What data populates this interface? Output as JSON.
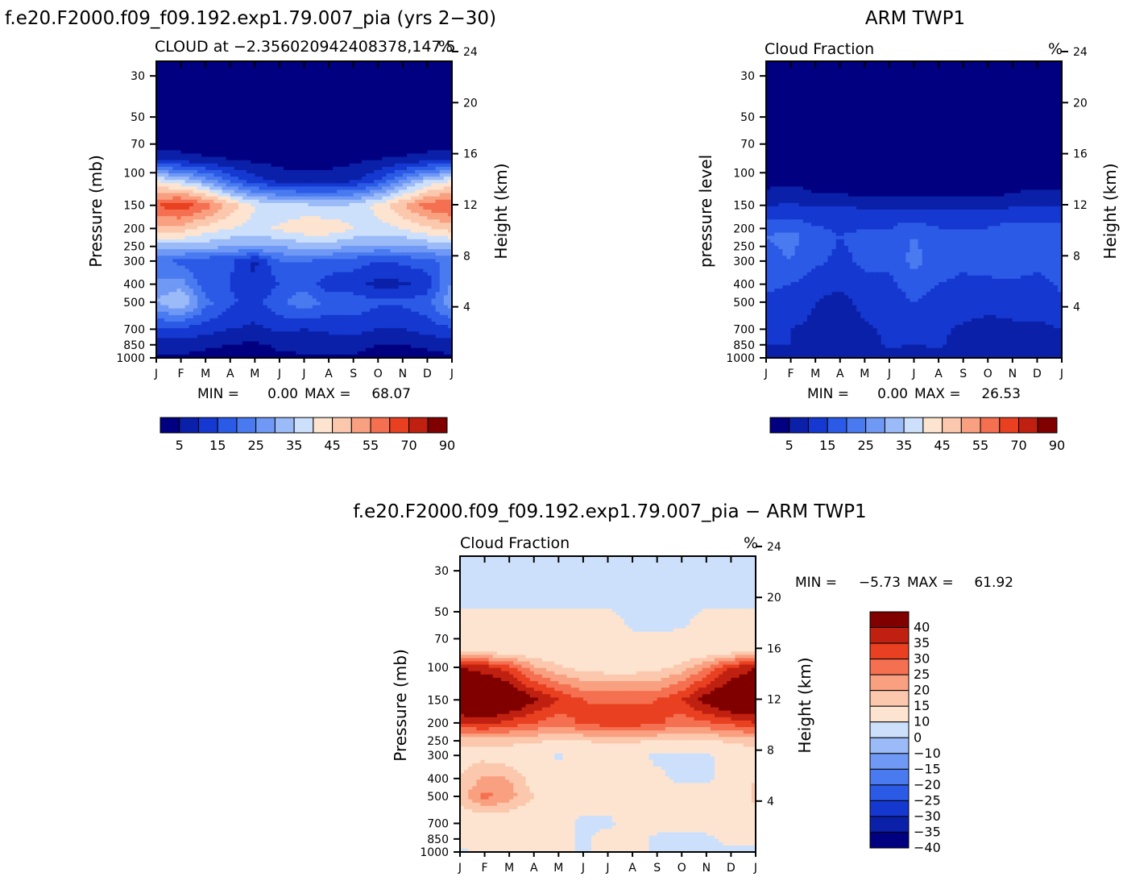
{
  "months": [
    "J",
    "F",
    "M",
    "A",
    "M",
    "J",
    "J",
    "A",
    "S",
    "O",
    "N",
    "D",
    "J"
  ],
  "pressure_ticks": [
    "30",
    "50",
    "70",
    "100",
    "150",
    "200",
    "250",
    "300",
    "400",
    "500",
    "700",
    "850",
    "1000"
  ],
  "height_ticks": [
    "24",
    "20",
    "16",
    "12",
    "8",
    "4"
  ],
  "chart_data": [
    {
      "type": "heatmap",
      "run_title": "f.e20.F2000.f09_f09.192.exp1.79.007_pia (yrs 2−30)",
      "title": "CLOUD at −2.356020942408378,147.5",
      "units": "%",
      "ylabel": "Pressure (mb)",
      "y2label": "Height (km)",
      "min_label": "MIN =",
      "min_value": "0.00",
      "max_label": "MAX =",
      "max_value": "68.07",
      "x": [
        "J",
        "F",
        "M",
        "A",
        "M",
        "J",
        "J",
        "A",
        "S",
        "O",
        "N",
        "D",
        "J"
      ],
      "ylim_mb": [
        1000,
        25
      ],
      "colorbar": {
        "labels": [
          "5",
          "15",
          "25",
          "35",
          "45",
          "55",
          "70",
          "90"
        ],
        "levels": [
          5,
          10,
          15,
          20,
          25,
          30,
          35,
          40,
          45,
          50,
          55,
          60,
          70,
          80,
          90
        ],
        "colors": [
          "#000080",
          "#0a20a8",
          "#1538d0",
          "#2b5ae6",
          "#4a7af0",
          "#6f99f5",
          "#9bbaf8",
          "#cde0fb",
          "#fde4d0",
          "#fbc8ae",
          "#f9a080",
          "#f57050",
          "#e84020",
          "#c02010",
          "#800000"
        ]
      },
      "profiles": [
        {
          "p": 25,
          "v": [
            2,
            2,
            2,
            2,
            2,
            2,
            2,
            2,
            2,
            2,
            2,
            2,
            2
          ]
        },
        {
          "p": 70,
          "v": [
            2,
            2,
            2,
            2,
            2,
            2,
            2,
            2,
            2,
            2,
            2,
            2,
            2
          ]
        },
        {
          "p": 85,
          "v": [
            8,
            8,
            6,
            5,
            4,
            3,
            3,
            3,
            4,
            5,
            6,
            8,
            8
          ]
        },
        {
          "p": 110,
          "v": [
            40,
            35,
            28,
            18,
            12,
            8,
            7,
            7,
            9,
            15,
            25,
            35,
            40
          ]
        },
        {
          "p": 150,
          "v": [
            60,
            64,
            58,
            48,
            40,
            36,
            36,
            35,
            36,
            42,
            50,
            58,
            60
          ]
        },
        {
          "p": 200,
          "v": [
            48,
            48,
            43,
            40,
            38,
            41,
            44,
            44,
            40,
            38,
            40,
            44,
            48
          ]
        },
        {
          "p": 250,
          "v": [
            33,
            33,
            32,
            30,
            30,
            30,
            32,
            32,
            30,
            29,
            29,
            31,
            33
          ]
        },
        {
          "p": 300,
          "v": [
            22,
            18,
            16,
            16,
            9,
            20,
            20,
            19,
            17,
            15,
            16,
            18,
            22
          ]
        },
        {
          "p": 400,
          "v": [
            26,
            28,
            16,
            15,
            10,
            15,
            18,
            12,
            12,
            8,
            9,
            12,
            26
          ]
        },
        {
          "p": 500,
          "v": [
            30,
            36,
            22,
            16,
            13,
            19,
            24,
            18,
            18,
            16,
            16,
            18,
            30
          ]
        },
        {
          "p": 700,
          "v": [
            14,
            14,
            12,
            10,
            9,
            11,
            10,
            11,
            12,
            10,
            10,
            12,
            14
          ]
        },
        {
          "p": 850,
          "v": [
            8,
            8,
            6,
            5,
            4,
            6,
            7,
            7,
            7,
            5,
            5,
            6,
            8
          ]
        },
        {
          "p": 1000,
          "v": [
            4,
            4,
            3,
            3,
            3,
            4,
            4,
            4,
            4,
            3,
            3,
            3,
            4
          ]
        }
      ]
    },
    {
      "type": "heatmap",
      "run_title": "ARM TWP1",
      "title": "Cloud Fraction",
      "units": "%",
      "ylabel": "pressure level",
      "y2label": "Height (km)",
      "min_label": "MIN =",
      "min_value": "0.00",
      "max_label": "MAX =",
      "max_value": "26.53",
      "x": [
        "J",
        "F",
        "M",
        "A",
        "M",
        "J",
        "J",
        "A",
        "S",
        "O",
        "N",
        "D",
        "J"
      ],
      "ylim_mb": [
        1000,
        25
      ],
      "colorbar": {
        "labels": [
          "5",
          "15",
          "25",
          "35",
          "45",
          "55",
          "70",
          "90"
        ],
        "levels": [
          5,
          10,
          15,
          20,
          25,
          30,
          35,
          40,
          45,
          50,
          55,
          60,
          70,
          80,
          90
        ],
        "colors": [
          "#000080",
          "#0a20a8",
          "#1538d0",
          "#2b5ae6",
          "#4a7af0",
          "#6f99f5",
          "#9bbaf8",
          "#cde0fb",
          "#fde4d0",
          "#fbc8ae",
          "#f9a080",
          "#f57050",
          "#e84020",
          "#c02010",
          "#800000"
        ]
      },
      "profiles": [
        {
          "p": 25,
          "v": [
            1,
            1,
            1,
            1,
            1,
            1,
            1,
            1,
            1,
            1,
            1,
            1,
            1
          ]
        },
        {
          "p": 100,
          "v": [
            2,
            2,
            2,
            2,
            2,
            2,
            2,
            2,
            2,
            2,
            2,
            2,
            2
          ]
        },
        {
          "p": 130,
          "v": [
            6,
            7,
            5,
            5,
            4,
            4,
            4,
            4,
            4,
            4,
            5,
            6,
            6
          ]
        },
        {
          "p": 170,
          "v": [
            13,
            14,
            13,
            13,
            13,
            13,
            13,
            12,
            12,
            12,
            13,
            13,
            13
          ]
        },
        {
          "p": 220,
          "v": [
            20,
            22,
            17,
            15,
            16,
            16,
            20,
            17,
            16,
            17,
            20,
            18,
            20
          ]
        },
        {
          "p": 300,
          "v": [
            18,
            20,
            16,
            14,
            16,
            16,
            22,
            17,
            16,
            17,
            19,
            17,
            18
          ]
        },
        {
          "p": 400,
          "v": [
            16,
            15,
            12,
            11,
            14,
            14,
            17,
            15,
            14,
            14,
            14,
            13,
            16
          ]
        },
        {
          "p": 500,
          "v": [
            14,
            13,
            10,
            8,
            12,
            13,
            15,
            13,
            13,
            12,
            12,
            12,
            14
          ]
        },
        {
          "p": 700,
          "v": [
            10,
            10,
            9,
            7,
            9,
            11,
            11,
            11,
            9,
            8,
            9,
            9,
            10
          ]
        },
        {
          "p": 850,
          "v": [
            10,
            10,
            8,
            6,
            8,
            11,
            10,
            11,
            8,
            8,
            8,
            9,
            10
          ]
        },
        {
          "p": 1000,
          "v": [
            6,
            6,
            5,
            5,
            6,
            6,
            6,
            6,
            6,
            6,
            6,
            6,
            6
          ]
        }
      ]
    },
    {
      "type": "heatmap",
      "run_title": "f.e20.F2000.f09_f09.192.exp1.79.007_pia − ARM TWP1",
      "title": "Cloud Fraction",
      "units": "%",
      "ylabel": "Pressure (mb)",
      "y2label": "Height (km)",
      "min_label": "MIN =",
      "min_value": "−5.73",
      "max_label": "MAX =",
      "max_value": "61.92",
      "x": [
        "J",
        "F",
        "M",
        "A",
        "M",
        "J",
        "J",
        "A",
        "S",
        "O",
        "N",
        "D",
        "J"
      ],
      "ylim_mb": [
        1000,
        25
      ],
      "colorbar": {
        "labels": [
          "40",
          "35",
          "30",
          "25",
          "20",
          "15",
          "10",
          "0",
          "−10",
          "−15",
          "−20",
          "−25",
          "−30",
          "−35",
          "−40"
        ],
        "levels": [
          -40,
          -35,
          -30,
          -25,
          -20,
          -15,
          -10,
          0,
          10,
          15,
          20,
          25,
          30,
          35,
          40
        ],
        "colors": [
          "#000080",
          "#0a20a8",
          "#1538d0",
          "#2b5ae6",
          "#4a7af0",
          "#6f99f5",
          "#9bbaf8",
          "#cde0fb",
          "#fde4d0",
          "#fbc8ae",
          "#f9a080",
          "#f57050",
          "#e84020",
          "#c02010",
          "#800000"
        ]
      },
      "profiles": [
        {
          "p": 25,
          "v": [
            -2,
            -2,
            -2,
            -2,
            -2,
            -2,
            -2,
            -2,
            -2,
            -2,
            -2,
            -2,
            -2
          ]
        },
        {
          "p": 45,
          "v": [
            -2,
            -2,
            -2,
            -2,
            -2,
            -2,
            -2,
            -2,
            -2,
            -2,
            -2,
            -2,
            -2
          ]
        },
        {
          "p": 55,
          "v": [
            3,
            3,
            3,
            3,
            3,
            3,
            3,
            -2,
            -2,
            -2,
            3,
            3,
            3
          ]
        },
        {
          "p": 80,
          "v": [
            5,
            5,
            5,
            4,
            4,
            3,
            3,
            3,
            3,
            4,
            4,
            5,
            5
          ]
        },
        {
          "p": 100,
          "v": [
            35,
            32,
            27,
            16,
            11,
            8,
            7,
            7,
            8,
            12,
            20,
            30,
            35
          ]
        },
        {
          "p": 150,
          "v": [
            45,
            48,
            44,
            36,
            30,
            25,
            24,
            24,
            25,
            30,
            38,
            44,
            45
          ]
        },
        {
          "p": 200,
          "v": [
            30,
            32,
            28,
            25,
            22,
            26,
            28,
            28,
            26,
            22,
            24,
            27,
            30
          ]
        },
        {
          "p": 250,
          "v": [
            12,
            12,
            12,
            11,
            10,
            10,
            11,
            11,
            10,
            9,
            10,
            11,
            12
          ]
        },
        {
          "p": 300,
          "v": [
            8,
            8,
            6,
            5,
            -2,
            6,
            6,
            4,
            -2,
            -2,
            -2,
            5,
            8
          ]
        },
        {
          "p": 400,
          "v": [
            10,
            16,
            15,
            7,
            4,
            3,
            3,
            3,
            2,
            -2,
            -2,
            4,
            10
          ]
        },
        {
          "p": 500,
          "v": [
            12,
            22,
            17,
            10,
            4,
            4,
            5,
            4,
            4,
            4,
            4,
            4,
            12
          ]
        },
        {
          "p": 700,
          "v": [
            4,
            4,
            4,
            3,
            3,
            -2,
            -2,
            4,
            4,
            4,
            4,
            4,
            4
          ]
        },
        {
          "p": 850,
          "v": [
            3,
            3,
            3,
            3,
            3,
            -2,
            4,
            3,
            -2,
            -2,
            -2,
            3,
            3
          ]
        },
        {
          "p": 1000,
          "v": [
            -2,
            3,
            3,
            3,
            3,
            -2,
            3,
            3,
            -2,
            -2,
            -2,
            -2,
            -2
          ]
        }
      ]
    }
  ]
}
